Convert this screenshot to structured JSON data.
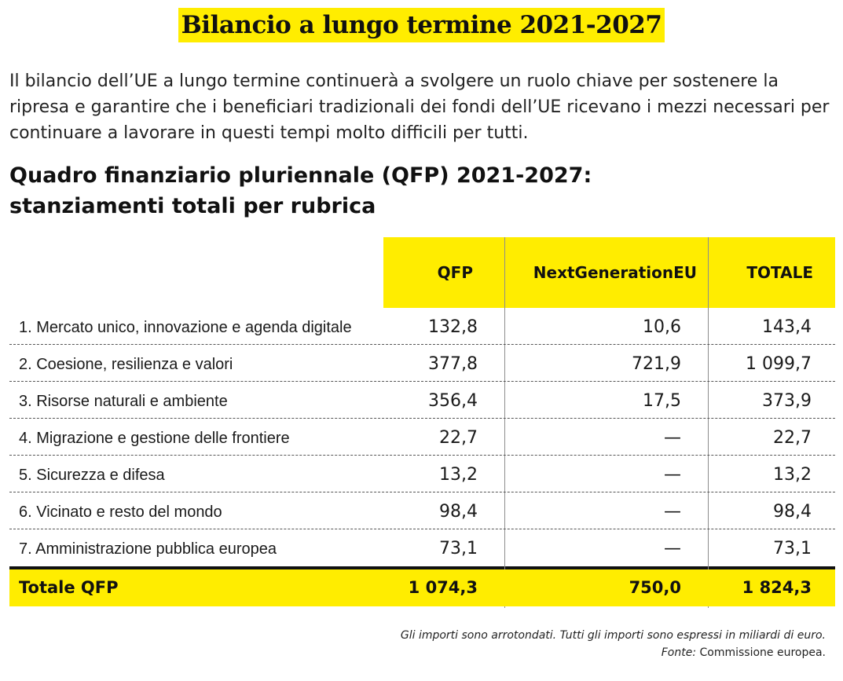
{
  "title": "Bilancio a lungo termine 2021-2027",
  "intro": "Il bilancio dell’UE a lungo termine continuerà a svolgere un ruolo chiave per sostenere la ripresa e garantire che i beneficiari tradizionali dei fondi dell’UE ricevano i mezzi necessari per continuare a lavorare in questi tempi molto difficili per tutti.",
  "subtitle_line1": "Quadro finanziario pluriennale (QFP) 2021-2027:",
  "subtitle_line2": "stanziamenti totali per rubrica",
  "table": {
    "columns": [
      "QFP",
      "NextGenerationEU",
      "TOTALE"
    ],
    "rows": [
      {
        "label": "1. Mercato unico, innovazione e agenda digitale",
        "qfp": "132,8",
        "ngeu": "10,6",
        "total": "143,4"
      },
      {
        "label": "2. Coesione, resilienza e valori",
        "qfp": "377,8",
        "ngeu": "721,9",
        "total": "1 099,7"
      },
      {
        "label": "3. Risorse naturali e ambiente",
        "qfp": "356,4",
        "ngeu": "17,5",
        "total": "373,9"
      },
      {
        "label": "4. Migrazione e gestione delle frontiere",
        "qfp": "22,7",
        "ngeu": "—",
        "total": "22,7"
      },
      {
        "label": "5. Sicurezza e difesa",
        "qfp": "13,2",
        "ngeu": "—",
        "total": "13,2"
      },
      {
        "label": "6. Vicinato e resto del mondo",
        "qfp": "98,4",
        "ngeu": "—",
        "total": "98,4"
      },
      {
        "label": "7. Amministrazione pubblica europea",
        "qfp": "73,1",
        "ngeu": "—",
        "total": "73,1"
      }
    ],
    "total": {
      "label": "Totale QFP",
      "qfp": "1 074,3",
      "ngeu": "750,0",
      "total": "1 824,3"
    }
  },
  "footnote_line1": "Gli importi sono arrotondati. Tutti gli importi sono espressi in miliardi di euro.",
  "footnote_source_label": "Fonte:",
  "footnote_source_value": "Commissione europea.",
  "colors": {
    "highlight": "#ffed00",
    "text": "#1a1a1a"
  }
}
